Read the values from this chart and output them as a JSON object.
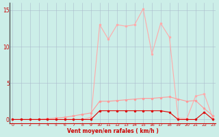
{
  "x": [
    0,
    1,
    2,
    3,
    4,
    5,
    6,
    7,
    8,
    9,
    10,
    11,
    12,
    13,
    14,
    15,
    16,
    17,
    18,
    19,
    20,
    21,
    22,
    23
  ],
  "rafales": [
    0.0,
    0.0,
    0.0,
    0.0,
    0.0,
    0.0,
    0.0,
    0.0,
    0.0,
    0.3,
    13.0,
    11.0,
    13.0,
    12.8,
    13.0,
    15.2,
    9.0,
    13.2,
    11.3,
    0.2,
    0.1,
    3.2,
    3.5,
    0.1
  ],
  "moyen": [
    0.0,
    0.0,
    0.0,
    0.0,
    0.1,
    0.2,
    0.3,
    0.5,
    0.7,
    0.9,
    2.5,
    2.5,
    2.6,
    2.7,
    2.8,
    2.9,
    2.9,
    3.0,
    3.1,
    2.8,
    2.5,
    2.6,
    1.5,
    0.5
  ],
  "freq": [
    0.0,
    0.0,
    0.0,
    0.0,
    0.0,
    0.0,
    0.0,
    0.0,
    0.0,
    0.0,
    1.2,
    1.2,
    1.2,
    1.2,
    1.2,
    1.2,
    1.2,
    1.2,
    1.0,
    0.0,
    0.0,
    0.0,
    1.0,
    0.0
  ],
  "bg_color": "#cceee8",
  "grid_color": "#aabbcc",
  "line_color_rafales": "#ffaaaa",
  "line_color_moyen": "#ff9999",
  "line_color_freq": "#dd0000",
  "marker": "o",
  "xlabel": "Vent moyen/en rafales ( km/h )",
  "xlim": [
    -0.3,
    23.3
  ],
  "ylim": [
    -0.5,
    16.0
  ],
  "yticks": [
    0,
    5,
    10,
    15
  ],
  "xticks": [
    0,
    1,
    2,
    3,
    4,
    5,
    6,
    7,
    8,
    9,
    10,
    11,
    12,
    13,
    14,
    15,
    16,
    17,
    18,
    19,
    20,
    21,
    22,
    23
  ]
}
